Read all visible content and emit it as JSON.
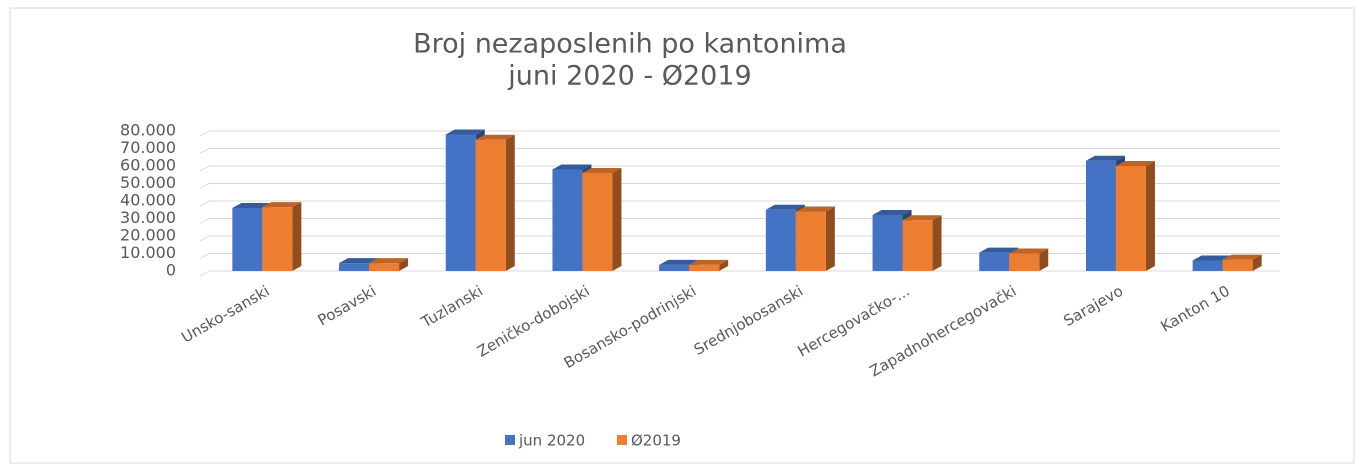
{
  "chart_data": {
    "type": "bar3d",
    "title": [
      "Broj nezaposlenih po kantonima",
      "juni 2020 - Ø2019"
    ],
    "categories": [
      "Unsko-sanski",
      "Posavski",
      "Tuzlanski",
      "Zeničko-dobojski",
      "Bosansko-podrinjski",
      "Srednjobosanski",
      "Hercegovačko-...",
      "Zapadnohercegovački",
      "Sarajevo",
      "Kanton 10"
    ],
    "series": [
      {
        "name": "jun 2020",
        "color": "#4472c4",
        "values": [
          36000,
          4500,
          78000,
          58000,
          3500,
          35000,
          32000,
          10500,
          63000,
          6000
        ]
      },
      {
        "name": "Ø2019",
        "color": "#ed7d31",
        "values": [
          36500,
          4500,
          75000,
          56000,
          3500,
          34000,
          29000,
          10000,
          60000,
          6500
        ]
      }
    ],
    "ylim": [
      0,
      80000
    ],
    "yticks": [
      0,
      {
        "value": 10000,
        "label": "10.000"
      },
      {
        "value": 20000,
        "label": "20.000"
      },
      {
        "value": 30000,
        "label": "30.000"
      },
      {
        "value": 40000,
        "label": "40.000"
      },
      {
        "value": 50000,
        "label": "50.000"
      },
      {
        "value": 60000,
        "label": "60.000"
      },
      {
        "value": 70000,
        "label": "70.000"
      },
      {
        "value": 80000,
        "label": "80.000"
      }
    ],
    "grid": true,
    "legend": "bottom"
  }
}
